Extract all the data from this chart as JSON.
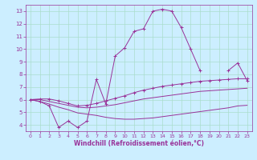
{
  "bg_color": "#cceeff",
  "grid_color": "#aaddcc",
  "line_color": "#993399",
  "xlabel": "Windchill (Refroidissement éolien,°C)",
  "xlim": [
    -0.5,
    23.5
  ],
  "ylim": [
    3.5,
    13.5
  ],
  "yticks": [
    4,
    5,
    6,
    7,
    8,
    9,
    10,
    11,
    12,
    13
  ],
  "xticks": [
    0,
    1,
    2,
    3,
    4,
    5,
    6,
    7,
    8,
    9,
    10,
    11,
    12,
    13,
    14,
    15,
    16,
    17,
    18,
    19,
    20,
    21,
    22,
    23
  ],
  "line1_y": [
    6.0,
    5.85,
    5.5,
    3.8,
    4.3,
    3.8,
    4.3,
    7.6,
    5.65,
    9.45,
    10.1,
    11.4,
    11.6,
    13.0,
    13.15,
    13.0,
    11.7,
    10.0,
    8.3,
    null,
    null,
    8.3,
    8.9,
    7.5
  ],
  "line2_y": [
    6.0,
    6.05,
    6.05,
    5.9,
    5.7,
    5.5,
    5.55,
    5.7,
    5.9,
    6.1,
    6.3,
    6.55,
    6.75,
    6.9,
    7.05,
    7.15,
    7.25,
    7.35,
    7.45,
    7.5,
    7.55,
    7.6,
    7.65,
    7.65
  ],
  "line3_y": [
    6.0,
    6.0,
    5.85,
    5.7,
    5.55,
    5.4,
    5.35,
    5.4,
    5.5,
    5.6,
    5.75,
    5.9,
    6.05,
    6.15,
    6.25,
    6.35,
    6.45,
    6.55,
    6.65,
    6.7,
    6.75,
    6.8,
    6.85,
    6.9
  ],
  "line4_y": [
    6.0,
    5.85,
    5.65,
    5.4,
    5.2,
    4.95,
    4.85,
    4.75,
    4.6,
    4.5,
    4.45,
    4.45,
    4.5,
    4.55,
    4.65,
    4.75,
    4.85,
    4.95,
    5.05,
    5.15,
    5.25,
    5.35,
    5.5,
    5.55
  ]
}
